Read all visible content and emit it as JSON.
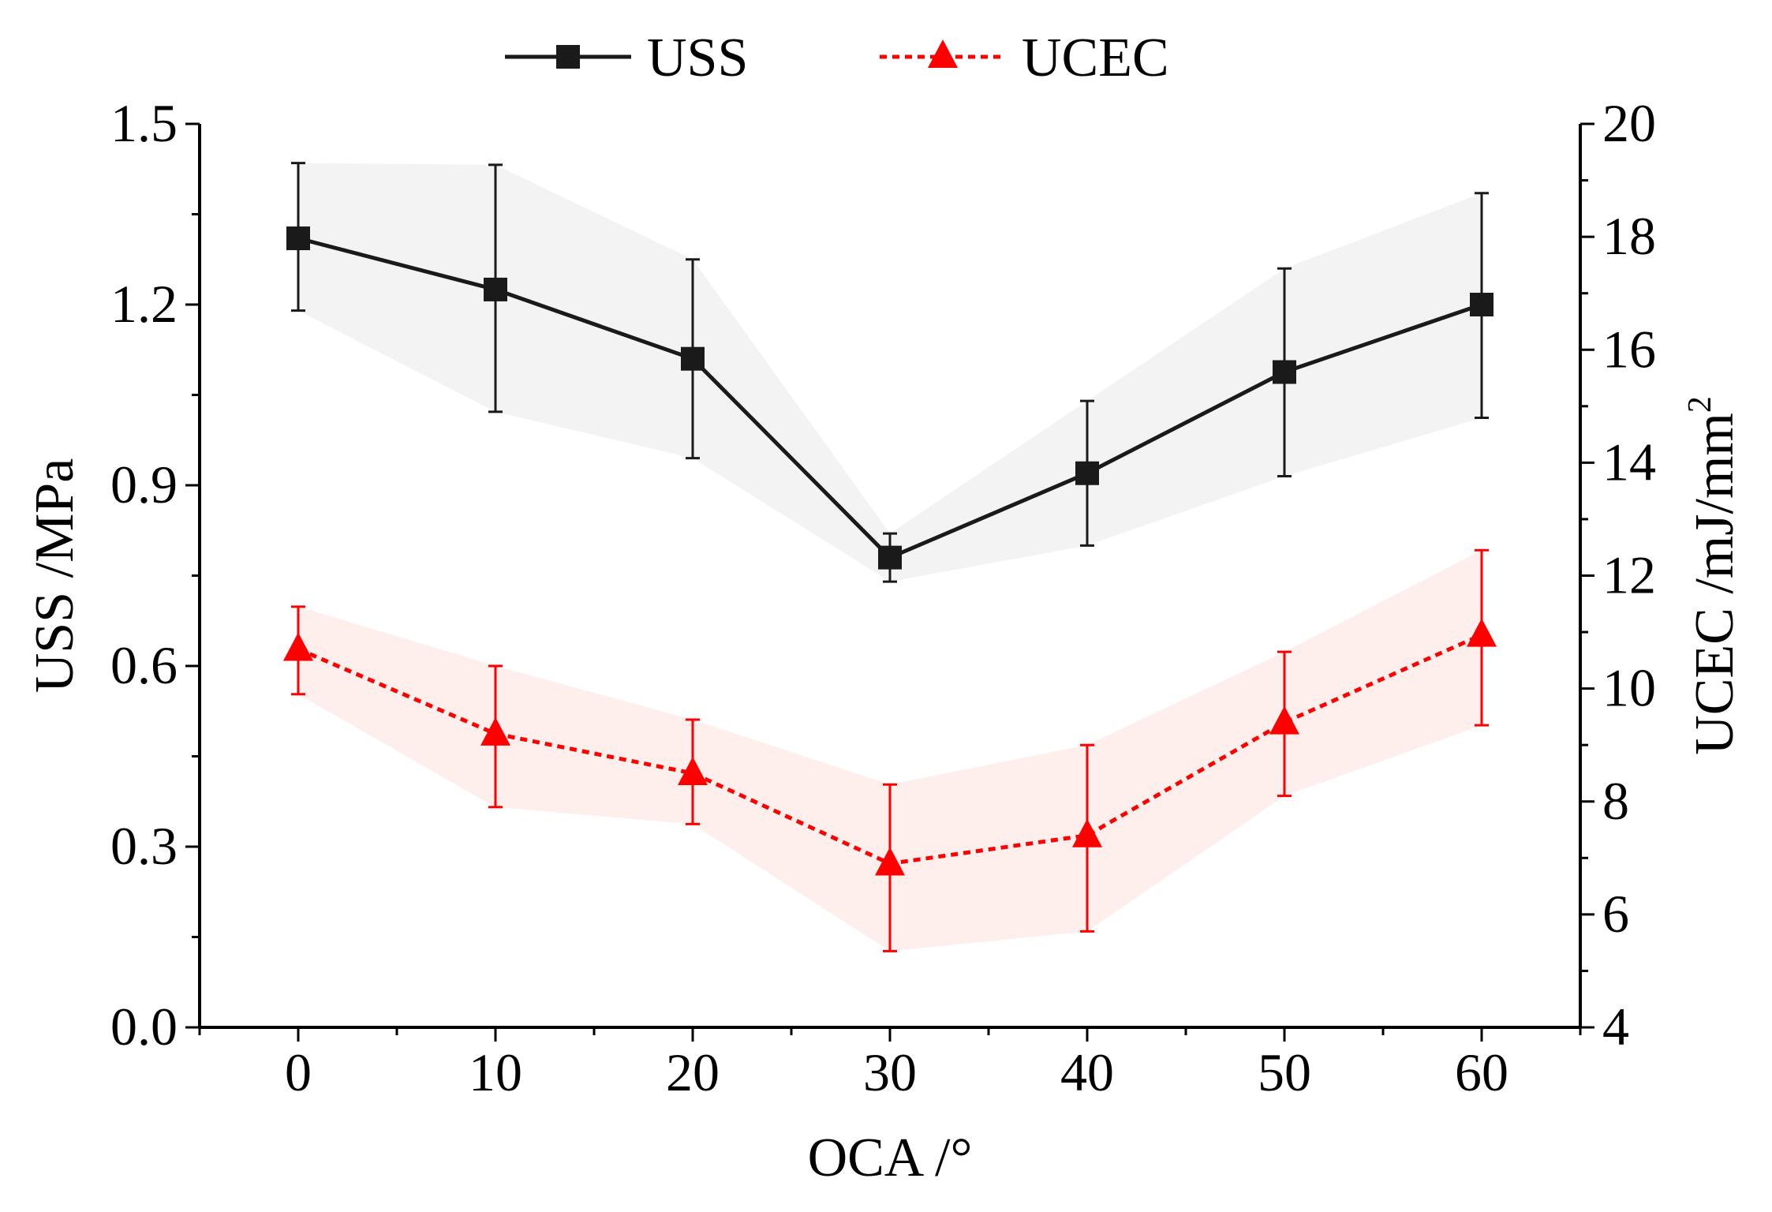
{
  "chart_data": {
    "type": "line",
    "title": "",
    "xlabel": "OCA /°",
    "ylabel": "USS /MPa",
    "y2label": "UCEC  /mJ/mm",
    "y2label_sup": "2",
    "x": [
      0,
      10,
      20,
      30,
      40,
      50,
      60
    ],
    "xlim": [
      -5,
      65
    ],
    "ylim": [
      0,
      1.5
    ],
    "y2lim": [
      4,
      20
    ],
    "xticks": [
      "0",
      "10",
      "20",
      "30",
      "40",
      "50",
      "60"
    ],
    "yticks": [
      "0.0",
      "0.3",
      "0.6",
      "0.9",
      "1.2",
      "1.5"
    ],
    "y2ticks": [
      "4",
      "6",
      "8",
      "10",
      "12",
      "14",
      "16",
      "18",
      "20"
    ],
    "legend": {
      "position": "top-center"
    },
    "series": [
      {
        "name": "USS",
        "axis": "left",
        "color": "#1a1a1a",
        "band_color": "#ebebeb",
        "marker": "square",
        "line_style": "solid",
        "values": [
          1.31,
          1.225,
          1.11,
          0.78,
          0.92,
          1.088,
          1.2
        ],
        "err_low": [
          1.19,
          1.022,
          0.945,
          0.74,
          0.8,
          0.915,
          1.012
        ],
        "err_high": [
          1.435,
          1.432,
          1.275,
          0.82,
          1.04,
          1.26,
          1.385
        ]
      },
      {
        "name": "UCEC",
        "axis": "right",
        "color": "#ff0000",
        "band_color": "#fde4e1",
        "marker": "triangle",
        "line_style": "dotted",
        "values": [
          10.7,
          9.2,
          8.5,
          6.9,
          7.4,
          9.4,
          10.95
        ],
        "err_low": [
          9.9,
          7.9,
          7.6,
          5.35,
          5.7,
          8.1,
          9.35
        ],
        "err_high": [
          11.45,
          10.4,
          9.45,
          8.3,
          9.0,
          10.65,
          12.45
        ]
      }
    ]
  }
}
